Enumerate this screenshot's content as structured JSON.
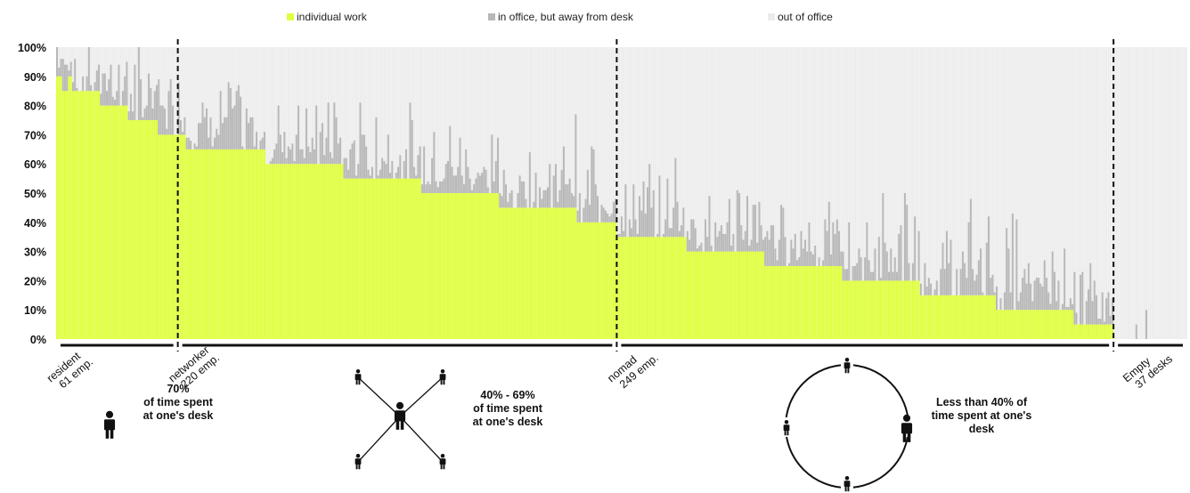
{
  "legend": {
    "individual_work": "individual work",
    "away_from_desk": "in office, but away from desk",
    "out_of_office": "out of office"
  },
  "colors": {
    "individual_work": "#dfff3f",
    "away_from_desk": "#b8b8b8",
    "out_of_office": "#ececec",
    "bar_separator": "#ffffff",
    "text": "#111111"
  },
  "chart_data": {
    "type": "bar",
    "stacked": true,
    "ylim": [
      0,
      100
    ],
    "y_ticks": [
      "0%",
      "10%",
      "20%",
      "30%",
      "40%",
      "50%",
      "60%",
      "70%",
      "80%",
      "90%",
      "100%"
    ],
    "series_names": [
      "individual work",
      "in office, but away from desk",
      "out of office"
    ],
    "groups": [
      {
        "name": "resident",
        "count_label": "61 emp.",
        "employees": 61,
        "individual_work_range": [
          90,
          69
        ],
        "description": [
          "70%",
          "of time spent",
          "at one's desk"
        ]
      },
      {
        "name": "networker",
        "count_label": "220 emp.",
        "employees": 220,
        "individual_work_range": [
          68,
          40
        ],
        "description": [
          "40% - 69%",
          "of time spent",
          "at one's desk"
        ]
      },
      {
        "name": "nomad",
        "count_label": "249 emp.",
        "employees": 249,
        "individual_work_range": [
          37,
          5
        ],
        "description": [
          "Less than 40% of",
          "time spent at one's",
          "desk"
        ]
      },
      {
        "name": "Empty",
        "count_label": "37 desks",
        "employees": 37,
        "individual_work_range": [
          0,
          0
        ],
        "description": []
      }
    ]
  }
}
